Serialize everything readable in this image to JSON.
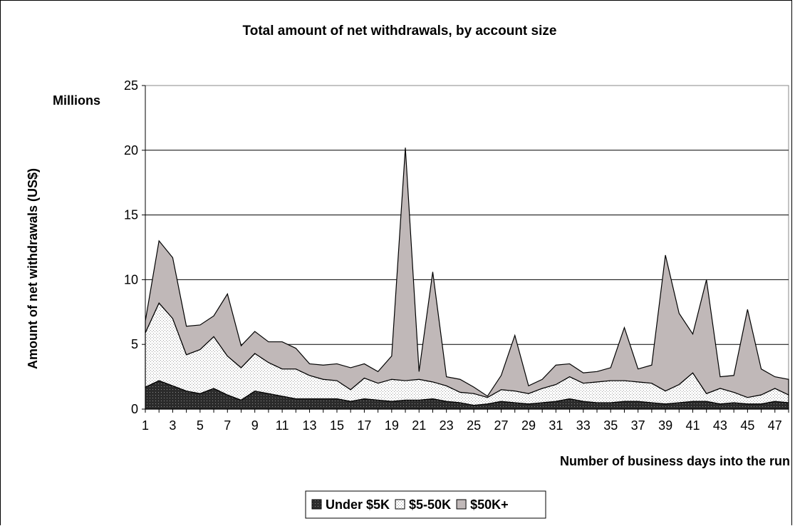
{
  "chart_data": {
    "type": "area",
    "stacked": true,
    "title": "Total amount of net withdrawals, by account size",
    "unit_label": "Millions",
    "xlabel": "Number of business days into the run",
    "ylabel": "Amount of net withdrawals (US$)",
    "ylim": [
      0,
      25
    ],
    "yticks": [
      0,
      5,
      10,
      15,
      20,
      25
    ],
    "x": [
      1,
      2,
      3,
      4,
      5,
      6,
      7,
      8,
      9,
      10,
      11,
      12,
      13,
      14,
      15,
      16,
      17,
      18,
      19,
      20,
      21,
      22,
      23,
      24,
      25,
      26,
      27,
      28,
      29,
      30,
      31,
      32,
      33,
      34,
      35,
      36,
      37,
      38,
      39,
      40,
      41,
      42,
      43,
      44,
      45,
      46,
      47,
      48
    ],
    "xticks": [
      1,
      3,
      5,
      7,
      9,
      11,
      13,
      15,
      17,
      19,
      21,
      23,
      25,
      27,
      29,
      31,
      33,
      35,
      37,
      39,
      41,
      43,
      45,
      47
    ],
    "grid": "horizontal",
    "legend_position": "bottom",
    "series": [
      {
        "name": "Under $5K",
        "color": "#2b2b2b",
        "pattern": "dark-dots",
        "values": [
          1.7,
          2.2,
          1.8,
          1.4,
          1.2,
          1.6,
          1.1,
          0.7,
          1.4,
          1.2,
          1.0,
          0.8,
          0.8,
          0.8,
          0.8,
          0.6,
          0.8,
          0.7,
          0.6,
          0.7,
          0.7,
          0.8,
          0.6,
          0.5,
          0.3,
          0.4,
          0.6,
          0.5,
          0.4,
          0.5,
          0.6,
          0.8,
          0.6,
          0.5,
          0.5,
          0.6,
          0.6,
          0.5,
          0.4,
          0.5,
          0.6,
          0.6,
          0.4,
          0.5,
          0.4,
          0.4,
          0.6,
          0.5
        ]
      },
      {
        "name": "$5-50K",
        "color": "#ffffff",
        "pattern": "light-dots",
        "values": [
          4.2,
          6.0,
          5.2,
          2.8,
          3.4,
          4.0,
          3.0,
          2.5,
          2.9,
          2.4,
          2.1,
          2.3,
          1.8,
          1.5,
          1.4,
          0.9,
          1.6,
          1.3,
          1.7,
          1.5,
          1.6,
          1.3,
          1.2,
          0.8,
          0.9,
          0.5,
          0.9,
          0.9,
          0.8,
          1.1,
          1.3,
          1.7,
          1.4,
          1.6,
          1.7,
          1.6,
          1.5,
          1.5,
          1.0,
          1.4,
          2.2,
          0.6,
          1.2,
          0.8,
          0.5,
          0.7,
          1.0,
          0.6
        ]
      },
      {
        "name": "$50K+",
        "color": "#c0b8b8",
        "pattern": "solid",
        "values": [
          0.9,
          4.8,
          4.7,
          2.2,
          1.9,
          1.6,
          4.8,
          1.7,
          1.7,
          1.6,
          2.1,
          1.6,
          0.9,
          1.1,
          1.3,
          1.7,
          1.1,
          0.9,
          1.8,
          18.0,
          0.6,
          8.5,
          0.7,
          1.0,
          0.5,
          0.1,
          1.1,
          4.3,
          0.6,
          0.7,
          1.5,
          1.0,
          0.8,
          0.8,
          1.0,
          4.1,
          1.0,
          1.4,
          10.5,
          5.5,
          3.0,
          8.8,
          0.9,
          1.3,
          6.8,
          2.0,
          0.9,
          1.2
        ]
      }
    ]
  }
}
